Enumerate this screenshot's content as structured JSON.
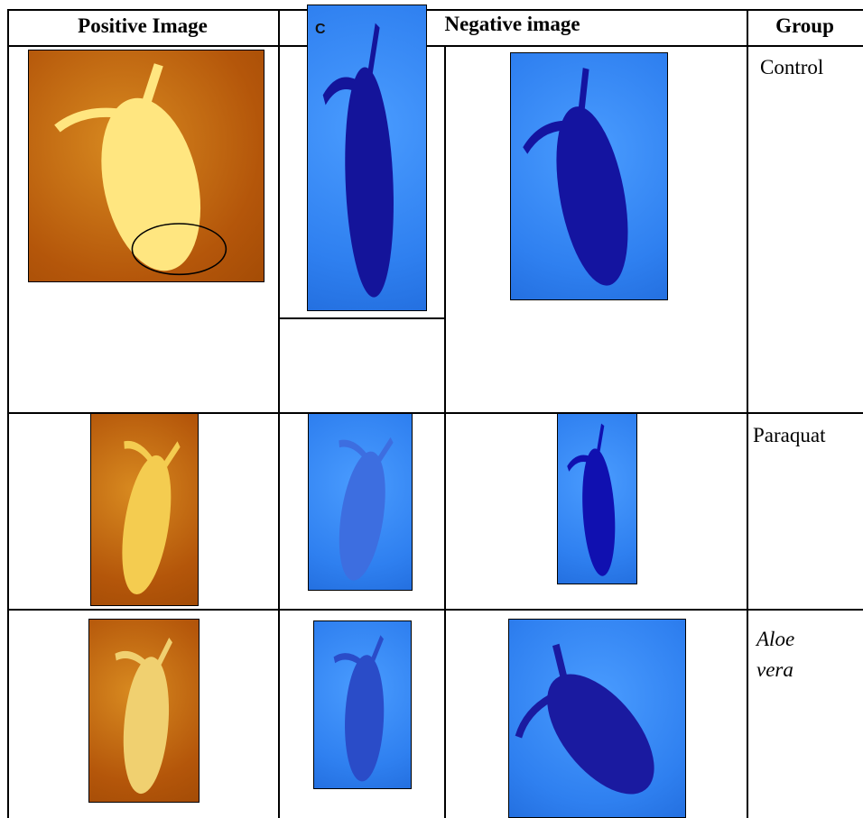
{
  "header": {
    "positive": "Positive Image",
    "negative": "Negative image",
    "group": "Group"
  },
  "image_label": "C",
  "rows": [
    {
      "group": "Control"
    },
    {
      "group": "Paraquat"
    },
    {
      "group": "Aloe vera"
    }
  ]
}
